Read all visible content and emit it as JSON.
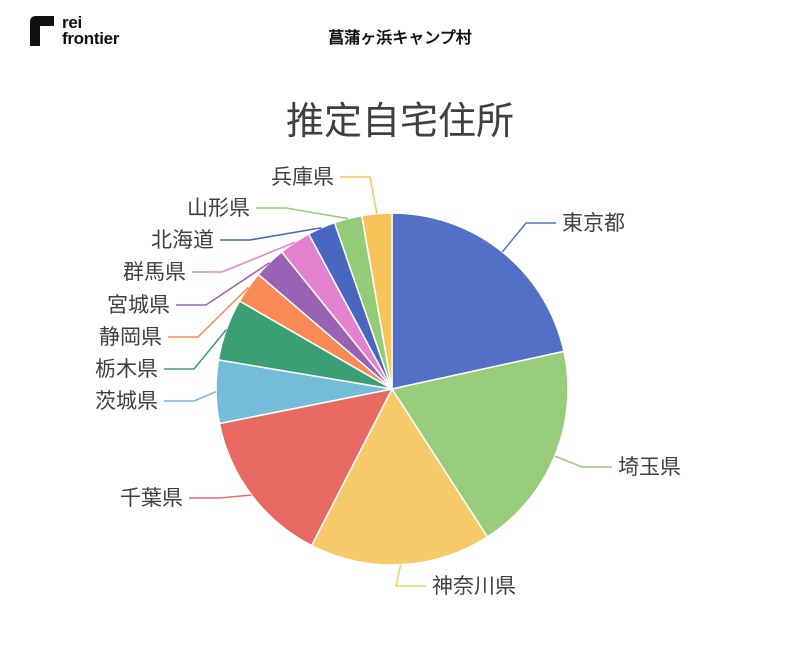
{
  "header": {
    "logo_line1": "rei",
    "logo_line2": "frontier",
    "title": "菖蒲ヶ浜キャンプ村"
  },
  "chart_data": {
    "type": "pie",
    "title": "推定自宅住所",
    "slices": [
      {
        "label": "東京都",
        "value": 22.0,
        "color": "#5470C6"
      },
      {
        "label": "埼玉県",
        "value": 19.7,
        "color": "#97CC7A"
      },
      {
        "label": "神奈川県",
        "value": 17.0,
        "color": "#F8CB6A"
      },
      {
        "label": "千葉県",
        "value": 14.6,
        "color": "#E86A62"
      },
      {
        "label": "茨城県",
        "value": 5.9,
        "color": "#73BCDA"
      },
      {
        "label": "栃木県",
        "value": 5.8,
        "color": "#3A9F74"
      },
      {
        "label": "静岡県",
        "value": 3.0,
        "color": "#FA8A55"
      },
      {
        "label": "宮城県",
        "value": 3.0,
        "color": "#9A62B3"
      },
      {
        "label": "群馬県",
        "value": 3.0,
        "color": "#E582CF"
      },
      {
        "label": "北海道",
        "value": 2.6,
        "color": "#4A67C0"
      },
      {
        "label": "山形県",
        "value": 2.6,
        "color": "#93CC77"
      },
      {
        "label": "兵庫県",
        "value": 2.8,
        "color": "#F8C55A"
      }
    ]
  }
}
